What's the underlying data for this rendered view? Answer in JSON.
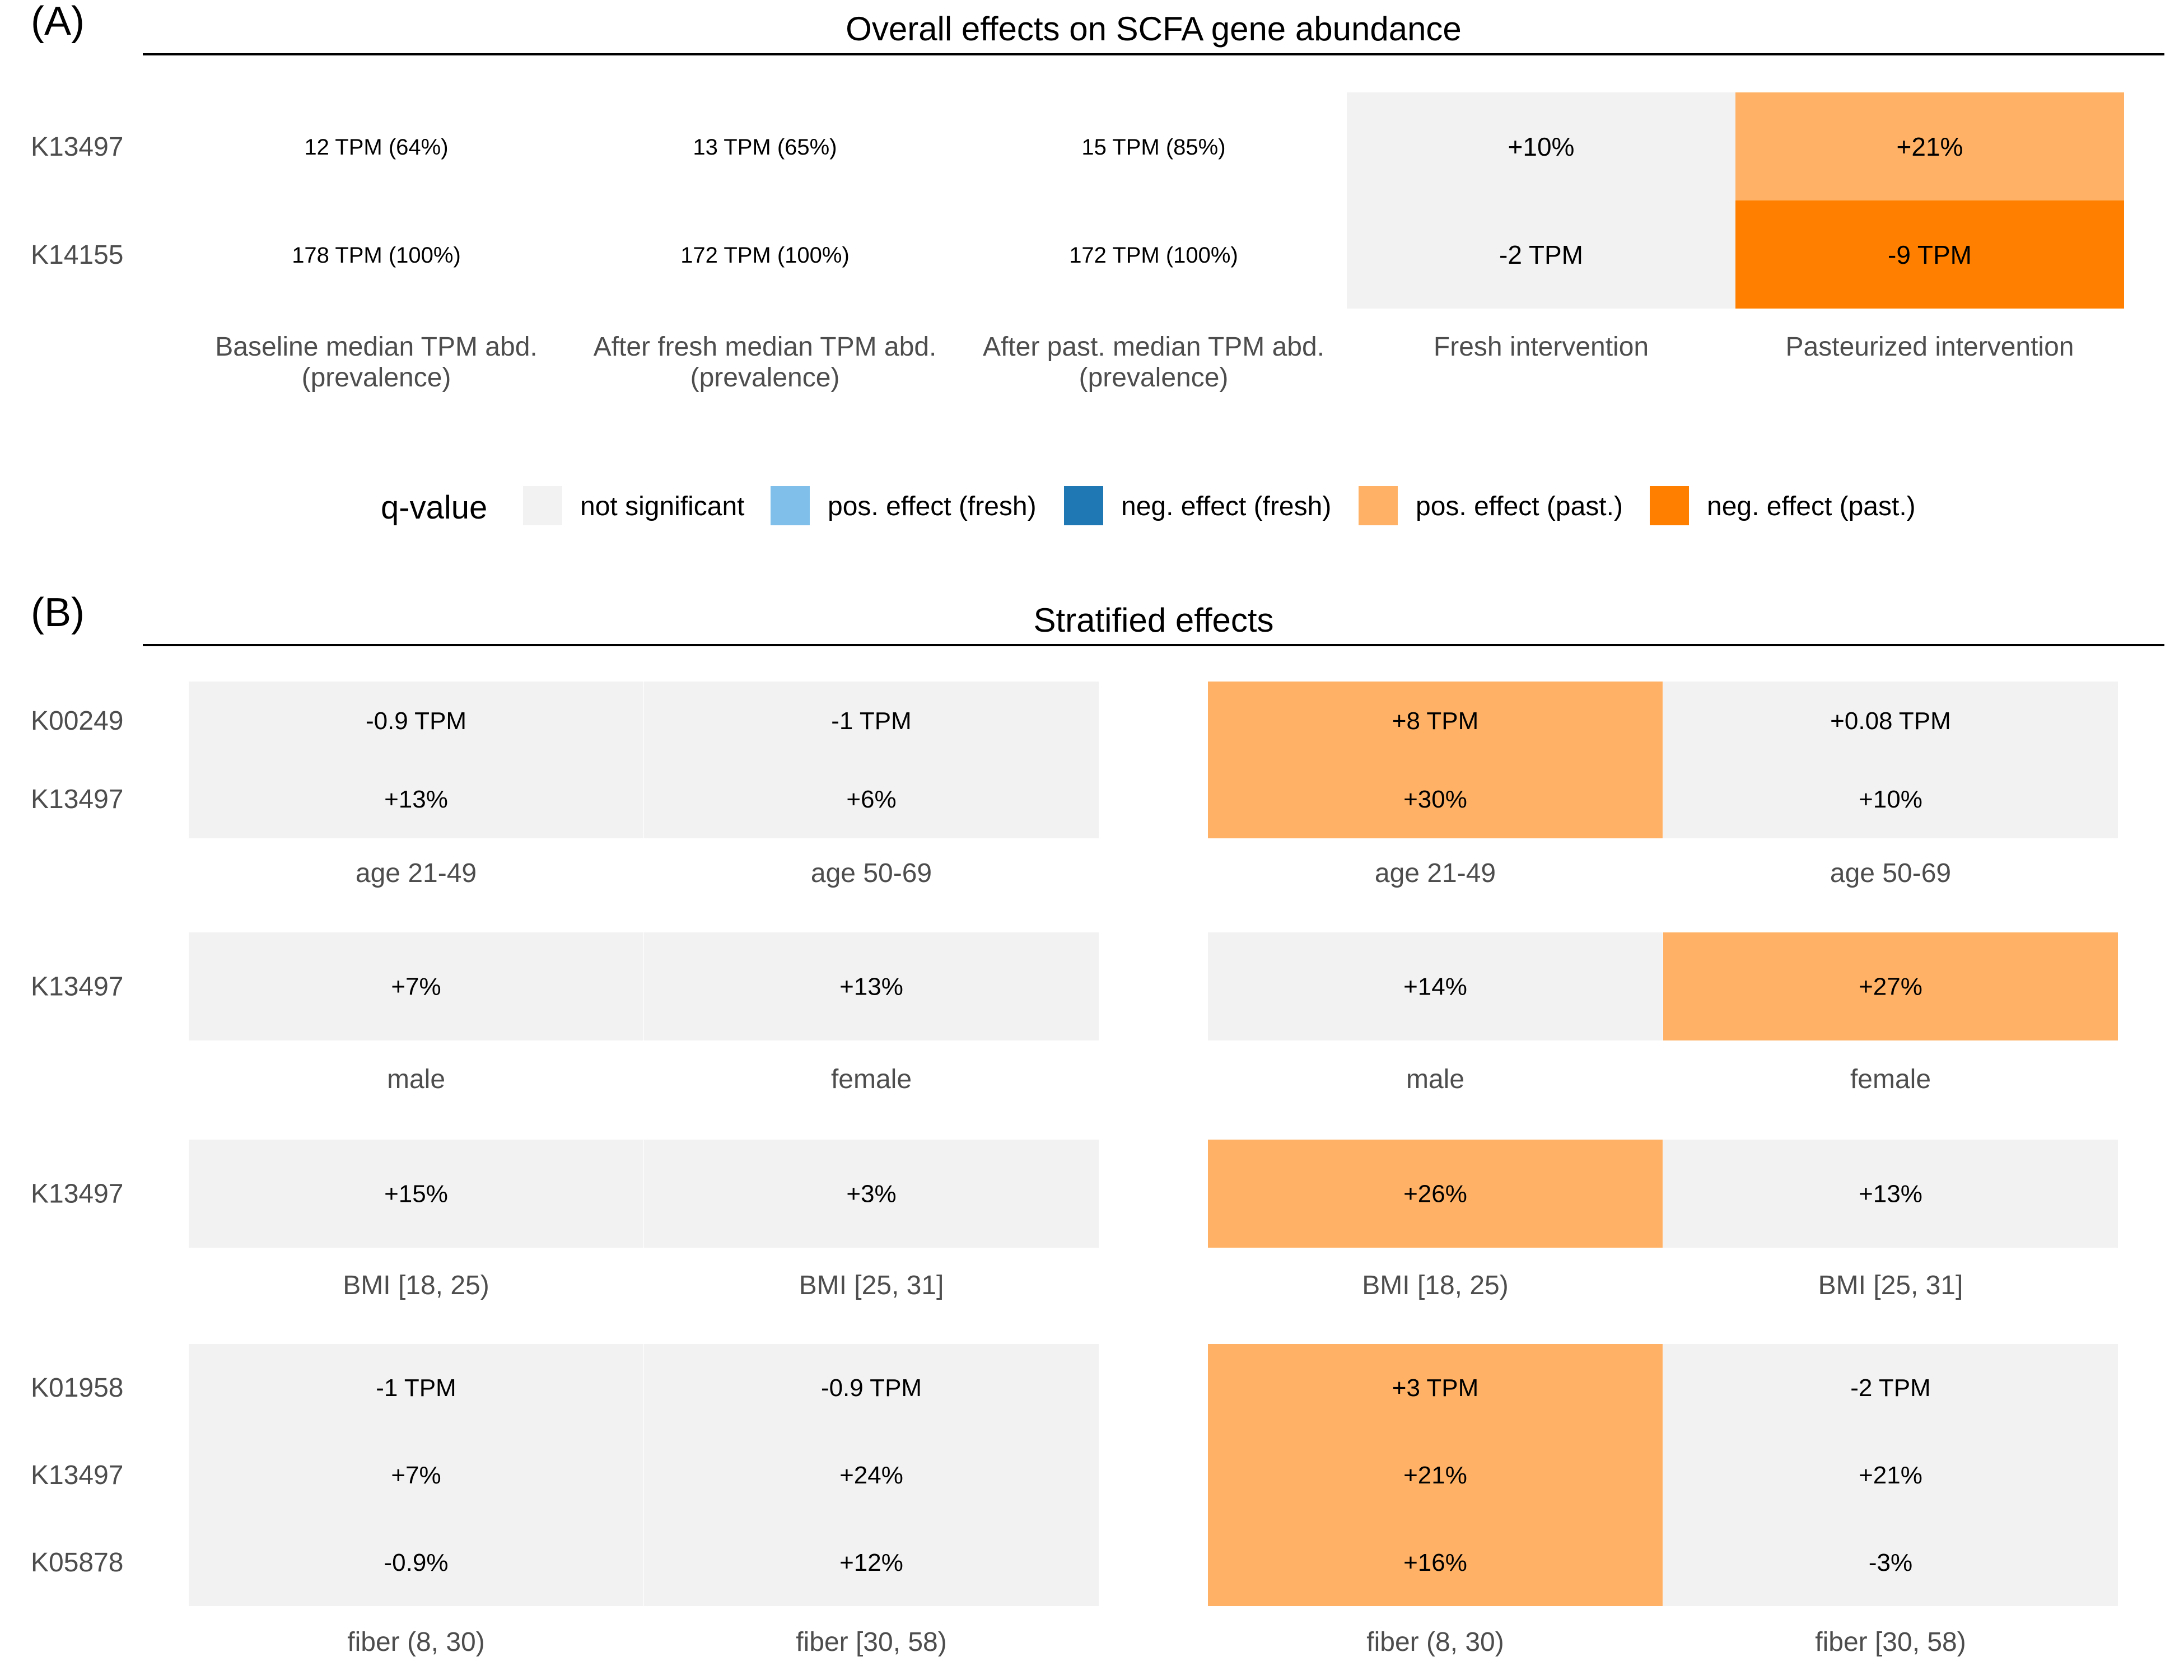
{
  "palette": {
    "not_significant": "#F2F2F2",
    "pos_fresh": "#7FBFEA",
    "neg_fresh": "#1F78B4",
    "pos_past": "#FFB266",
    "neg_past": "#FF8000"
  },
  "panel_a": {
    "tag": "(A)",
    "title": "Overall effects on SCFA gene abundance",
    "rows": [
      "K13497",
      "K14155"
    ],
    "columns": [
      {
        "line1": "Baseline median TPM abd.",
        "line2": "(prevalence)"
      },
      {
        "line1": "After fresh median TPM abd.",
        "line2": "(prevalence)"
      },
      {
        "line1": "After past. median TPM abd.",
        "line2": "(prevalence)"
      },
      {
        "line1": "Fresh intervention",
        "line2": ""
      },
      {
        "line1": "Pasteurized intervention",
        "line2": ""
      }
    ]
  },
  "legend": {
    "title": "q-value",
    "items": [
      {
        "key": "not_significant",
        "label": "not significant"
      },
      {
        "key": "pos_fresh",
        "label": "pos. effect (fresh)"
      },
      {
        "key": "neg_fresh",
        "label": "neg. effect (fresh)"
      },
      {
        "key": "pos_past",
        "label": "pos. effect (past.)"
      },
      {
        "key": "neg_past",
        "label": "neg. effect (past.)"
      }
    ]
  },
  "panel_b": {
    "tag": "(B)",
    "title": "Stratified effects"
  },
  "chart_data": [
    {
      "type": "table",
      "title": "Overall effects on SCFA gene abundance",
      "rows": [
        "K13497",
        "K14155"
      ],
      "columns": [
        "Baseline median TPM abd. (prevalence)",
        "After fresh median TPM abd. (prevalence)",
        "After past. median TPM abd. (prevalence)",
        "Fresh intervention",
        "Pasteurized intervention"
      ],
      "cells": [
        [
          {
            "text": "12 TPM (64%)",
            "status": null
          },
          {
            "text": "13 TPM (65%)",
            "status": null
          },
          {
            "text": "15 TPM (85%)",
            "status": null
          },
          {
            "text": "+10%",
            "status": "not_significant"
          },
          {
            "text": "+21%",
            "status": "pos_past"
          }
        ],
        [
          {
            "text": "178 TPM (100%)",
            "status": null
          },
          {
            "text": "172 TPM (100%)",
            "status": null
          },
          {
            "text": "172 TPM (100%)",
            "status": null
          },
          {
            "text": "-2 TPM",
            "status": "not_significant"
          },
          {
            "text": "-9 TPM",
            "status": "neg_past"
          }
        ]
      ]
    },
    {
      "type": "heatmap",
      "title": "Stratified effects",
      "groups": [
        {
          "rows": [
            "K00249",
            "K13497"
          ],
          "columns": [
            "age 21-49",
            "age 50-69"
          ],
          "fresh": [
            [
              {
                "text": "-0.9 TPM",
                "status": "not_significant"
              },
              {
                "text": "-1 TPM",
                "status": "not_significant"
              }
            ],
            [
              {
                "text": "+13%",
                "status": "not_significant"
              },
              {
                "text": "+6%",
                "status": "not_significant"
              }
            ]
          ],
          "pasteurized": [
            [
              {
                "text": "+8 TPM",
                "status": "pos_past"
              },
              {
                "text": "+0.08 TPM",
                "status": "not_significant"
              }
            ],
            [
              {
                "text": "+30%",
                "status": "pos_past"
              },
              {
                "text": "+10%",
                "status": "not_significant"
              }
            ]
          ]
        },
        {
          "rows": [
            "K13497"
          ],
          "columns": [
            "male",
            "female"
          ],
          "fresh": [
            [
              {
                "text": "+7%",
                "status": "not_significant"
              },
              {
                "text": "+13%",
                "status": "not_significant"
              }
            ]
          ],
          "pasteurized": [
            [
              {
                "text": "+14%",
                "status": "not_significant"
              },
              {
                "text": "+27%",
                "status": "pos_past"
              }
            ]
          ]
        },
        {
          "rows": [
            "K13497"
          ],
          "columns": [
            "BMI [18, 25)",
            "BMI [25, 31]"
          ],
          "fresh": [
            [
              {
                "text": "+15%",
                "status": "not_significant"
              },
              {
                "text": "+3%",
                "status": "not_significant"
              }
            ]
          ],
          "pasteurized": [
            [
              {
                "text": "+26%",
                "status": "pos_past"
              },
              {
                "text": "+13%",
                "status": "not_significant"
              }
            ]
          ]
        },
        {
          "rows": [
            "K01958",
            "K13497",
            "K05878"
          ],
          "columns": [
            "fiber (8, 30)",
            "fiber [30, 58)"
          ],
          "fresh": [
            [
              {
                "text": "-1 TPM",
                "status": "not_significant"
              },
              {
                "text": "-0.9 TPM",
                "status": "not_significant"
              }
            ],
            [
              {
                "text": "+7%",
                "status": "not_significant"
              },
              {
                "text": "+24%",
                "status": "not_significant"
              }
            ],
            [
              {
                "text": "-0.9%",
                "status": "not_significant"
              },
              {
                "text": "+12%",
                "status": "not_significant"
              }
            ]
          ],
          "pasteurized": [
            [
              {
                "text": "+3 TPM",
                "status": "pos_past"
              },
              {
                "text": "-2 TPM",
                "status": "not_significant"
              }
            ],
            [
              {
                "text": "+21%",
                "status": "pos_past"
              },
              {
                "text": "+21%",
                "status": "not_significant"
              }
            ],
            [
              {
                "text": "+16%",
                "status": "pos_past"
              },
              {
                "text": "-3%",
                "status": "not_significant"
              }
            ]
          ]
        }
      ]
    }
  ]
}
